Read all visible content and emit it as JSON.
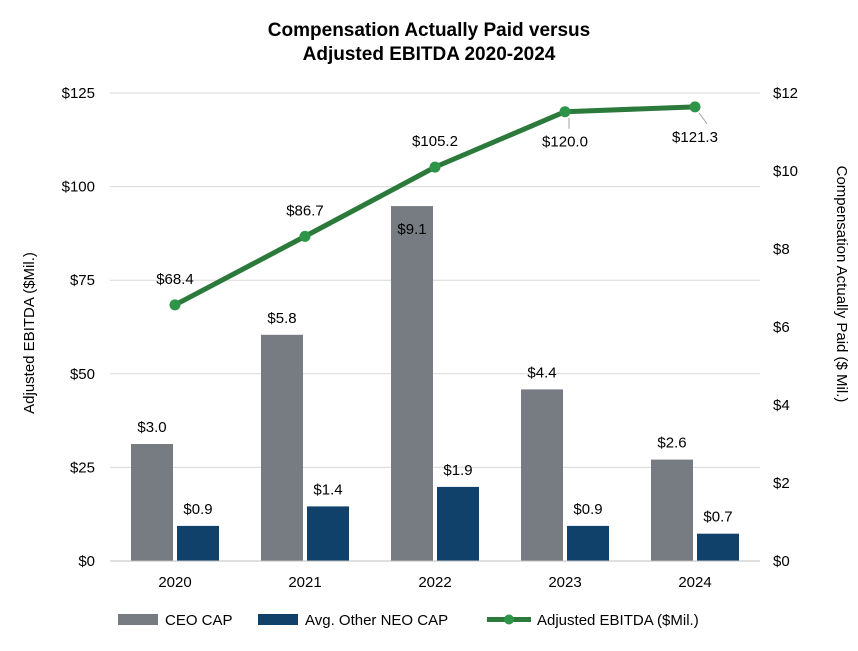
{
  "chart_data": {
    "type": "bar+line",
    "title_lines": [
      "Compensation Actually Paid versus",
      "Adjusted EBITDA 2020-2024"
    ],
    "categories": [
      "2020",
      "2021",
      "2022",
      "2023",
      "2024"
    ],
    "left_axis": {
      "label": "Adjusted EBITDA ($Mil.)",
      "range": [
        0,
        125
      ],
      "ticks": [
        0,
        25,
        50,
        75,
        100,
        125
      ],
      "tick_labels": [
        "$0",
        "$25",
        "$50",
        "$75",
        "$100",
        "$125"
      ]
    },
    "right_axis": {
      "label": "Compensation Actually Paid ($ Mil.)",
      "range": [
        0,
        12
      ],
      "ticks": [
        0,
        2,
        4,
        6,
        8,
        10,
        12
      ],
      "tick_labels": [
        "$0",
        "$2",
        "$4",
        "$6",
        "$8",
        "$10",
        "$12"
      ]
    },
    "bar_series": [
      {
        "name": "CEO CAP",
        "axis": "right",
        "color": "#767c82",
        "values": [
          3.0,
          5.8,
          9.1,
          4.4,
          2.6
        ],
        "labels": [
          "$3.0",
          "$5.8",
          "$9.1",
          "$4.4",
          "$2.6"
        ]
      },
      {
        "name": "Avg. Other NEO CAP",
        "axis": "right",
        "color": "#10416b",
        "values": [
          0.9,
          1.4,
          1.9,
          0.9,
          0.7
        ],
        "labels": [
          "$0.9",
          "$1.4",
          "$1.9",
          "$0.9",
          "$0.7"
        ]
      }
    ],
    "line_series": {
      "name": "Adjusted EBITDA ($Mil.)",
      "axis": "left",
      "color": "#2b7a3b",
      "values": [
        68.4,
        86.7,
        105.2,
        120.0,
        121.3
      ],
      "labels": [
        "$68.4",
        "$86.7",
        "$105.2",
        "$120.0",
        "$121.3"
      ]
    },
    "legend_position": "bottom",
    "grid": true
  }
}
